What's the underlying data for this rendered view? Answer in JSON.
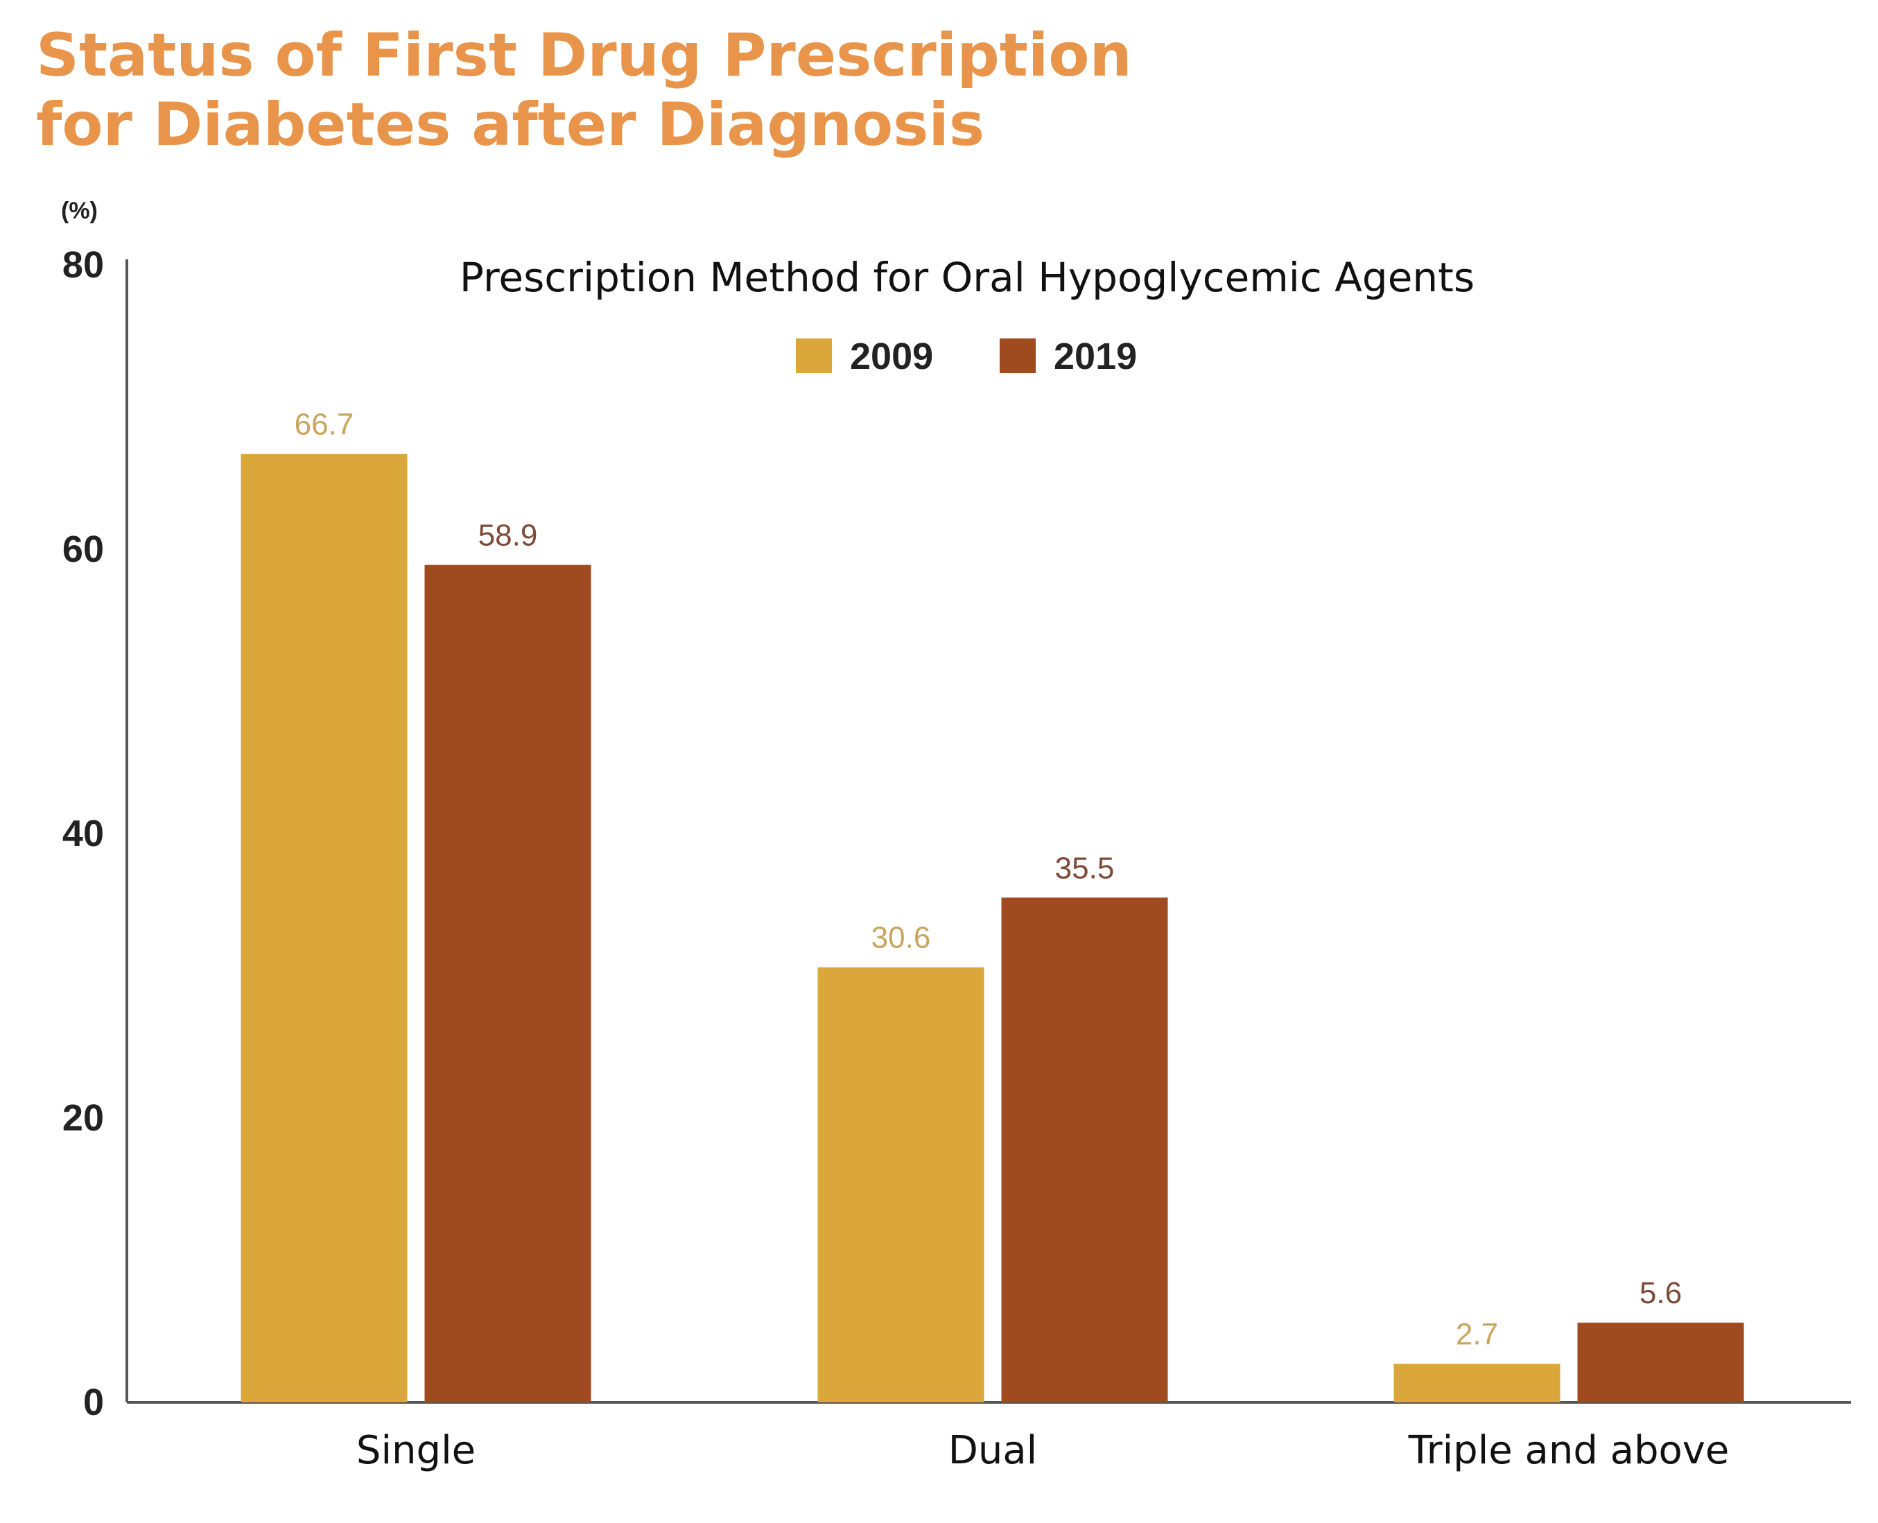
{
  "page": {
    "title_line1": "Status of First Drug Prescription",
    "title_line2": "for Diabetes after Diagnosis"
  },
  "chart_data": {
    "type": "bar",
    "title": "Prescription Method for Oral Hypoglycemic Agents",
    "unit": "(%)",
    "xlabel": "",
    "ylabel": "",
    "ylim": [
      0,
      80
    ],
    "yticks": [
      0,
      20,
      40,
      60,
      80
    ],
    "categories": [
      "Single",
      "Dual",
      "Triple and above"
    ],
    "series": [
      {
        "name": "2009",
        "values": [
          66.7,
          30.6,
          2.7
        ],
        "color": "#dba63a",
        "label_color": "#c9a45e"
      },
      {
        "name": "2019",
        "values": [
          58.9,
          35.5,
          5.6
        ],
        "color": "#9f4a1f",
        "label_color": "#7d4a3a"
      }
    ],
    "legend_position": "top-center",
    "grid": false,
    "title_color": "#e8944a"
  }
}
